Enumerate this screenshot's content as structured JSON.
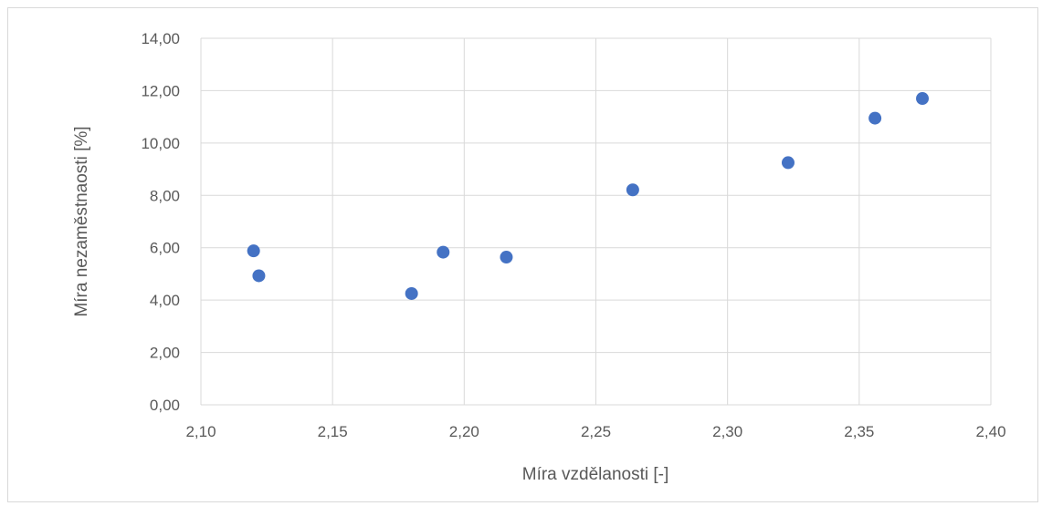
{
  "chart_data": {
    "type": "scatter",
    "title": "",
    "xlabel": "Míra vzdělanosti [-]",
    "ylabel": "Míra nezaměstnaosti [%]",
    "xlim": [
      2.1,
      2.4
    ],
    "ylim": [
      0,
      14
    ],
    "x_ticks": [
      "2,10",
      "2,15",
      "2,20",
      "2,25",
      "2,30",
      "2,35",
      "2,40"
    ],
    "y_ticks": [
      "0,00",
      "2,00",
      "4,00",
      "6,00",
      "8,00",
      "10,00",
      "12,00",
      "14,00"
    ],
    "grid": true,
    "legend": "none",
    "color": "#4472c4",
    "points": [
      {
        "x": 2.12,
        "y": 5.88
      },
      {
        "x": 2.122,
        "y": 4.93
      },
      {
        "x": 2.18,
        "y": 4.25
      },
      {
        "x": 2.192,
        "y": 5.83
      },
      {
        "x": 2.216,
        "y": 5.64
      },
      {
        "x": 2.264,
        "y": 8.21
      },
      {
        "x": 2.323,
        "y": 9.25
      },
      {
        "x": 2.356,
        "y": 10.95
      },
      {
        "x": 2.374,
        "y": 11.7
      }
    ]
  }
}
